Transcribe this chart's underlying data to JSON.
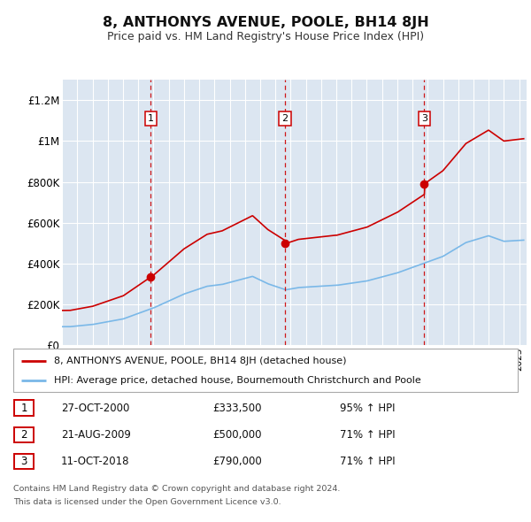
{
  "title": "8, ANTHONYS AVENUE, POOLE, BH14 8JH",
  "subtitle": "Price paid vs. HM Land Registry's House Price Index (HPI)",
  "ylim": [
    0,
    1300000
  ],
  "yticks": [
    0,
    200000,
    400000,
    600000,
    800000,
    1000000,
    1200000
  ],
  "ytick_labels": [
    "£0",
    "£200K",
    "£400K",
    "£600K",
    "£800K",
    "£1M",
    "£1.2M"
  ],
  "sale_date_str": [
    "27-OCT-2000",
    "21-AUG-2009",
    "11-OCT-2018"
  ],
  "sale_prices": [
    333500,
    500000,
    790000
  ],
  "sale_labels": [
    "1",
    "2",
    "3"
  ],
  "sale_pct": [
    "95% ↑ HPI",
    "71% ↑ HPI",
    "71% ↑ HPI"
  ],
  "legend_red": "8, ANTHONYS AVENUE, POOLE, BH14 8JH (detached house)",
  "legend_blue": "HPI: Average price, detached house, Bournemouth Christchurch and Poole",
  "footer1": "Contains HM Land Registry data © Crown copyright and database right 2024.",
  "footer2": "This data is licensed under the Open Government Licence v3.0.",
  "red_color": "#cc0000",
  "blue_color": "#7ab8e8",
  "bg_color": "#dce6f1",
  "grid_color": "#ffffff"
}
